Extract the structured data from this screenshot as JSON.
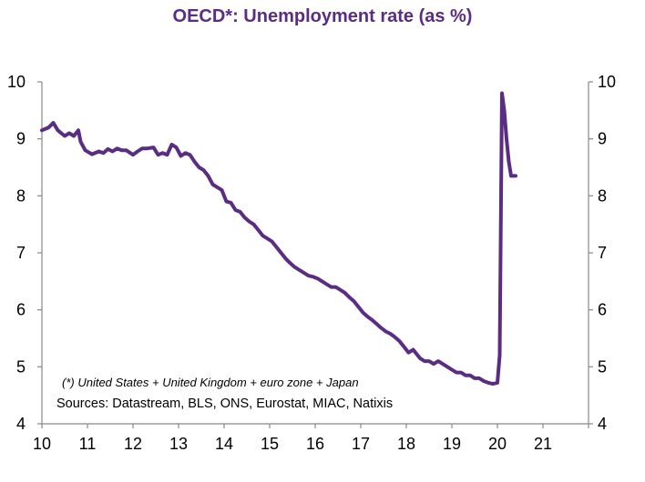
{
  "chart_data": {
    "type": "line",
    "title": "OECD*:  Unemployment rate (as %)",
    "xlabel": "",
    "ylabel": "",
    "x_tick_labels": [
      "10",
      "11",
      "12",
      "13",
      "14",
      "15",
      "16",
      "17",
      "18",
      "19",
      "20",
      "21"
    ],
    "y_tick_labels": [
      "4",
      "5",
      "6",
      "7",
      "8",
      "9",
      "10"
    ],
    "xlim": [
      2010.0,
      2022.0
    ],
    "ylim": [
      4,
      10
    ],
    "grid": false,
    "footnote": "(*) United States + United Kingdom + euro zone + Japan",
    "source": "Sources:  Datastream,  BLS, ONS, Eurostat,  MIAC, Natixis",
    "series": [
      {
        "color": "#5b2d82",
        "x": [
          2010.0,
          2010.15,
          2010.25,
          2010.35,
          2010.5,
          2010.6,
          2010.7,
          2010.8,
          2010.85,
          2010.95,
          2011.1,
          2011.25,
          2011.35,
          2011.45,
          2011.55,
          2011.65,
          2011.75,
          2011.85,
          2012.0,
          2012.1,
          2012.2,
          2012.3,
          2012.45,
          2012.55,
          2012.65,
          2012.75,
          2012.85,
          2012.95,
          2013.05,
          2013.15,
          2013.25,
          2013.35,
          2013.45,
          2013.55,
          2013.65,
          2013.75,
          2013.85,
          2013.95,
          2014.05,
          2014.15,
          2014.25,
          2014.35,
          2014.45,
          2014.55,
          2014.65,
          2014.75,
          2014.85,
          2014.95,
          2015.05,
          2015.15,
          2015.25,
          2015.35,
          2015.45,
          2015.55,
          2015.65,
          2015.75,
          2015.85,
          2015.95,
          2016.05,
          2016.15,
          2016.25,
          2016.35,
          2016.45,
          2016.55,
          2016.65,
          2016.75,
          2016.85,
          2016.95,
          2017.05,
          2017.15,
          2017.25,
          2017.35,
          2017.45,
          2017.55,
          2017.65,
          2017.75,
          2017.85,
          2017.95,
          2018.05,
          2018.15,
          2018.25,
          2018.3,
          2018.4,
          2018.5,
          2018.6,
          2018.7,
          2018.8,
          2018.9,
          2019.0,
          2019.1,
          2019.2,
          2019.3,
          2019.4,
          2019.5,
          2019.6,
          2019.7,
          2019.8,
          2019.9,
          2020.0,
          2020.05,
          2020.1,
          2020.15,
          2020.2,
          2020.25,
          2020.3,
          2020.35,
          2020.4
        ],
        "y": [
          9.15,
          9.2,
          9.28,
          9.15,
          9.05,
          9.1,
          9.05,
          9.15,
          8.95,
          8.8,
          8.73,
          8.78,
          8.75,
          8.82,
          8.78,
          8.83,
          8.8,
          8.8,
          8.72,
          8.78,
          8.83,
          8.83,
          8.85,
          8.72,
          8.75,
          8.72,
          8.9,
          8.85,
          8.7,
          8.75,
          8.72,
          8.6,
          8.5,
          8.45,
          8.35,
          8.2,
          8.15,
          8.1,
          7.9,
          7.88,
          7.75,
          7.72,
          7.62,
          7.55,
          7.5,
          7.4,
          7.3,
          7.25,
          7.2,
          7.1,
          7.0,
          6.9,
          6.82,
          6.75,
          6.7,
          6.65,
          6.6,
          6.58,
          6.55,
          6.5,
          6.45,
          6.4,
          6.4,
          6.35,
          6.3,
          6.22,
          6.15,
          6.05,
          5.95,
          5.88,
          5.82,
          5.75,
          5.68,
          5.62,
          5.58,
          5.52,
          5.45,
          5.35,
          5.25,
          5.3,
          5.2,
          5.15,
          5.1,
          5.1,
          5.05,
          5.1,
          5.05,
          5.0,
          4.95,
          4.9,
          4.9,
          4.85,
          4.85,
          4.8,
          4.8,
          4.75,
          4.72,
          4.7,
          4.72,
          5.2,
          9.8,
          9.5,
          9.0,
          8.6,
          8.35,
          8.35,
          8.35
        ]
      }
    ]
  },
  "style": {
    "title_color": "#5b2d82",
    "line_color": "#5b2d82",
    "axis_color": "#888888",
    "text_color": "#000000"
  }
}
